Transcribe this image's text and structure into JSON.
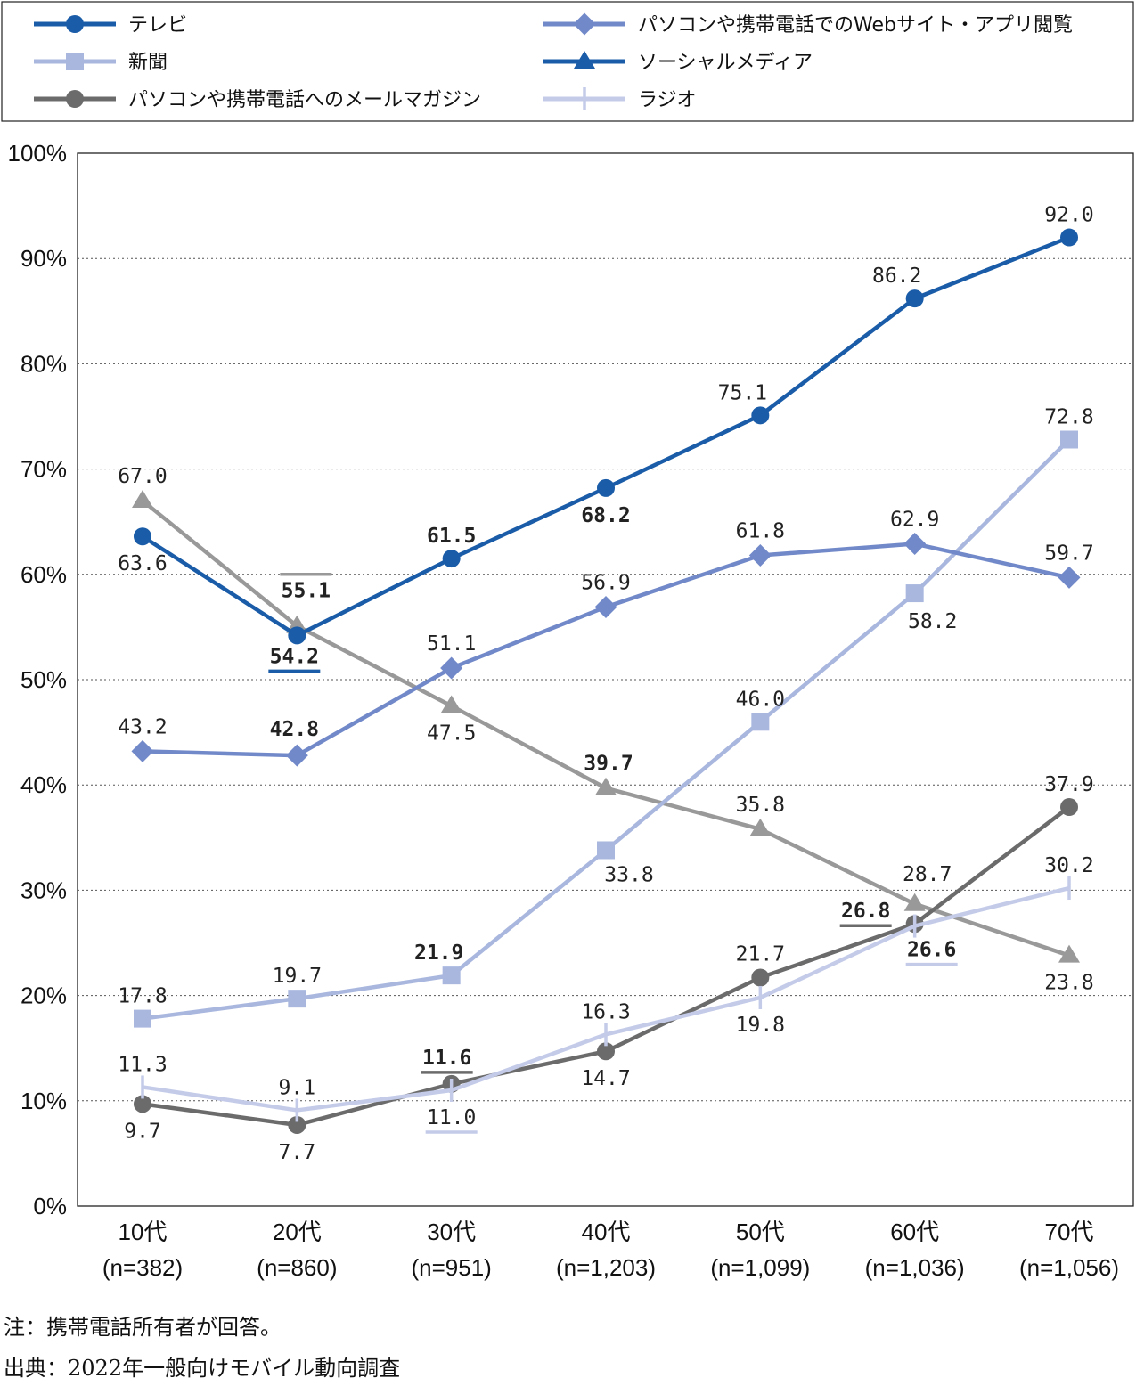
{
  "chart_data": {
    "type": "line",
    "categories": [
      "10代",
      "20代",
      "30代",
      "40代",
      "50代",
      "60代",
      "70代"
    ],
    "category_sublabels": [
      "(n=382)",
      "(n=860)",
      "(n=951)",
      "(n=1,203)",
      "(n=1,099)",
      "(n=1,036)",
      "(n=1,056)"
    ],
    "ylim": [
      0,
      100
    ],
    "yticks": [
      "0%",
      "10%",
      "20%",
      "30%",
      "40%",
      "50%",
      "60%",
      "70%",
      "80%",
      "90%",
      "100%"
    ],
    "grid": "horizontal-dotted",
    "legend_placement": "top",
    "series": [
      {
        "name": "テレビ",
        "marker": "circle",
        "color": "#1a5ca8",
        "values": [
          63.6,
          54.2,
          61.5,
          68.2,
          75.1,
          86.2,
          92.0
        ],
        "labels": [
          "63.6",
          "54.2",
          "61.5",
          "68.2",
          "75.1",
          "86.2",
          "92.0"
        ]
      },
      {
        "name": "新聞",
        "marker": "square",
        "color": "#a9b7df",
        "values": [
          17.8,
          19.7,
          21.9,
          33.8,
          46.0,
          58.2,
          72.8
        ],
        "labels": [
          "17.8",
          "19.7",
          "21.9",
          "33.8",
          "46.0",
          "58.2",
          "72.8"
        ]
      },
      {
        "name": "パソコンや携帯電話へのメールマガジン",
        "marker": "circle",
        "color": "#6b6b6b",
        "values": [
          9.7,
          7.7,
          11.6,
          14.7,
          21.7,
          26.8,
          37.9
        ],
        "labels": [
          "9.7",
          "7.7",
          "11.6",
          "14.7",
          "21.7",
          "26.8",
          "37.9"
        ]
      },
      {
        "name": "パソコンや携帯電話でのWebサイト・アプリ閲覧",
        "marker": "diamond",
        "color": "#7289c9",
        "values": [
          43.2,
          42.8,
          51.1,
          56.9,
          61.8,
          62.9,
          59.7
        ],
        "labels": [
          "43.2",
          "42.8",
          "51.1",
          "56.9",
          "61.8",
          "62.9",
          "59.7"
        ]
      },
      {
        "name": "ソーシャルメディア",
        "marker": "triangle",
        "color": "#999999",
        "values": [
          67.0,
          55.1,
          47.5,
          39.7,
          35.8,
          28.7,
          23.8
        ],
        "labels": [
          "67.0",
          "55.1",
          "47.5",
          "39.7",
          "35.8",
          "28.7",
          "23.8"
        ]
      },
      {
        "name": "ラジオ",
        "marker": "tick",
        "color": "#c3cbe9",
        "values": [
          11.3,
          9.1,
          11.0,
          16.3,
          19.8,
          26.6,
          30.2
        ],
        "labels": [
          "11.3",
          "9.1",
          "11.0",
          "16.3",
          "19.8",
          "26.6",
          "30.2"
        ]
      }
    ],
    "legend_marker_colors": {
      "ソーシャルメディア": "#1a5ca8"
    }
  },
  "notes": {
    "note": "注：携帯電話所有者が回答。",
    "source": "出典：2022年一般向けモバイル動向調査"
  }
}
